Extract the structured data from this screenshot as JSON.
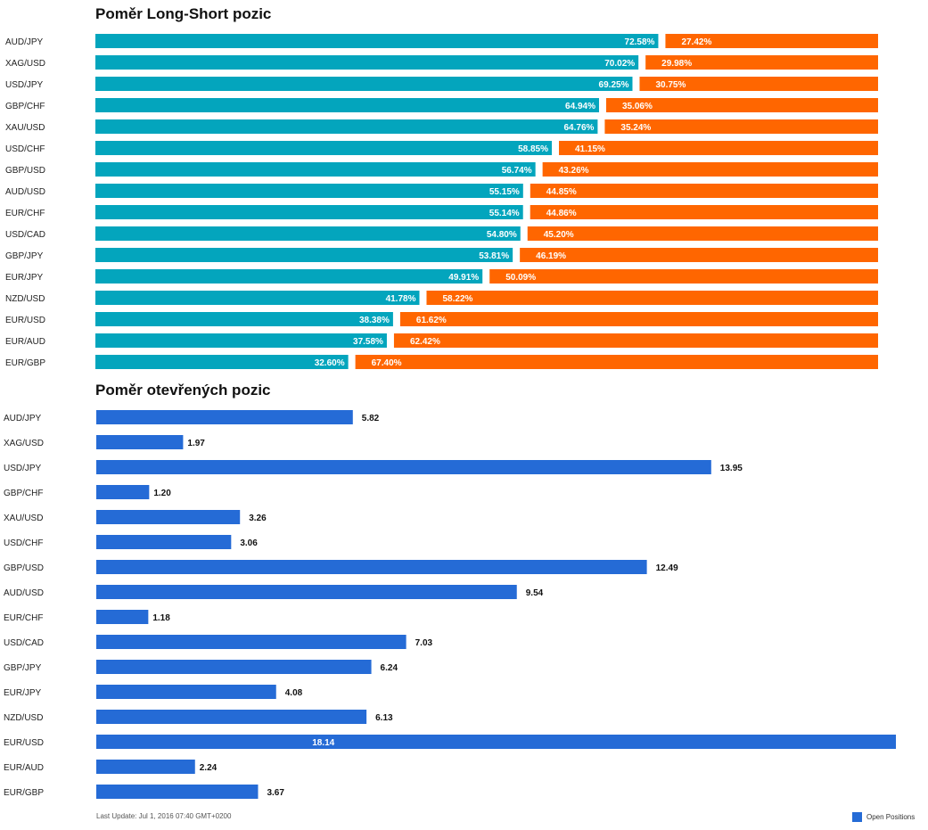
{
  "colors": {
    "long": "#03a5bd",
    "short": "#ff6600",
    "open": "#256bd6"
  },
  "footer": {
    "last_update": "Last Update: Jul 1, 2016 07:40 GMT+0200"
  },
  "chart_data": [
    {
      "type": "bar",
      "stacked": true,
      "orientation": "horizontal",
      "title": "Poměr Long-Short pozic",
      "categories": [
        "AUD/JPY",
        "XAG/USD",
        "USD/JPY",
        "GBP/CHF",
        "XAU/USD",
        "USD/CHF",
        "GBP/USD",
        "AUD/USD",
        "EUR/CHF",
        "USD/CAD",
        "GBP/JPY",
        "EUR/JPY",
        "NZD/USD",
        "EUR/USD",
        "EUR/AUD",
        "EUR/GBP"
      ],
      "series": [
        {
          "values": [
            72.58,
            70.02,
            69.25,
            64.94,
            64.76,
            58.85,
            56.74,
            55.15,
            55.14,
            54.8,
            53.81,
            49.91,
            41.78,
            38.38,
            37.58,
            32.6
          ]
        },
        {
          "values": [
            27.42,
            29.98,
            30.75,
            35.06,
            35.24,
            41.15,
            43.26,
            44.85,
            44.86,
            45.2,
            46.19,
            50.09,
            58.22,
            61.62,
            62.42,
            67.4
          ]
        }
      ],
      "labels": {
        "long": [
          "72.58%",
          "70.02%",
          "69.25%",
          "64.94%",
          "64.76%",
          "58.85%",
          "56.74%",
          "55.15%",
          "55.14%",
          "54.80%",
          "53.81%",
          "49.91%",
          "41.78%",
          "38.38%",
          "37.58%",
          "32.60%"
        ],
        "short": [
          "27.42%",
          "29.98%",
          "30.75%",
          "35.06%",
          "35.24%",
          "41.15%",
          "43.26%",
          "44.85%",
          "44.86%",
          "45.20%",
          "46.19%",
          "50.09%",
          "58.22%",
          "61.62%",
          "62.42%",
          "67.40%"
        ]
      },
      "xlim": [
        0,
        100
      ]
    },
    {
      "type": "bar",
      "orientation": "horizontal",
      "title": "Poměr otevřených pozic",
      "categories": [
        "AUD/JPY",
        "XAG/USD",
        "USD/JPY",
        "GBP/CHF",
        "XAU/USD",
        "USD/CHF",
        "GBP/USD",
        "AUD/USD",
        "EUR/CHF",
        "USD/CAD",
        "GBP/JPY",
        "EUR/JPY",
        "NZD/USD",
        "EUR/USD",
        "EUR/AUD",
        "EUR/GBP"
      ],
      "series": [
        {
          "name": "Open Positions",
          "values": [
            5.82,
            1.97,
            13.95,
            1.2,
            3.26,
            3.06,
            12.49,
            9.54,
            1.18,
            7.03,
            6.24,
            4.08,
            6.13,
            18.14,
            2.24,
            3.67
          ]
        }
      ],
      "labels": [
        "5.82",
        "1.97",
        "13.95",
        "1.20",
        "3.26",
        "3.06",
        "12.49",
        "9.54",
        "1.18",
        "7.03",
        "6.24",
        "4.08",
        "6.13",
        "18.14",
        "2.24",
        "3.67"
      ],
      "legend": "bottom-right",
      "xlim": [
        0,
        18.14
      ]
    }
  ]
}
